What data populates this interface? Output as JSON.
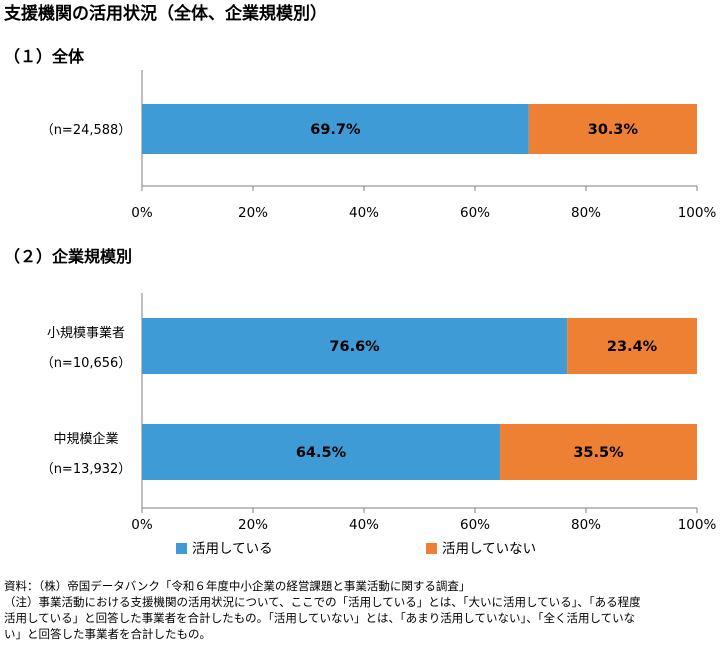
{
  "title": "支援機関の活用状況（全体、企業規模別）",
  "colors": {
    "used": "#3F9BD5",
    "not_used": "#EE8034"
  },
  "legend": {
    "used": "活用している",
    "not_used": "活用していない"
  },
  "chart_data": [
    {
      "type": "bar",
      "orientation": "horizontal",
      "stacked": true,
      "title": "（１）全体",
      "categories": [
        {
          "name": "",
          "n": "（n=24,588）"
        }
      ],
      "series": [
        {
          "name": "活用している",
          "values": [
            69.7
          ],
          "labels": [
            "69.7%"
          ]
        },
        {
          "name": "活用していない",
          "values": [
            30.3
          ],
          "labels": [
            "30.3%"
          ]
        }
      ],
      "xlim": [
        0,
        100
      ],
      "ticks": [
        "0%",
        "20%",
        "40%",
        "60%",
        "80%",
        "100%"
      ],
      "grid": false
    },
    {
      "type": "bar",
      "orientation": "horizontal",
      "stacked": true,
      "title": "（２）企業規模別",
      "categories": [
        {
          "name": "小規模事業者",
          "n": "（n=10,656）"
        },
        {
          "name": "中規模企業",
          "n": "（n=13,932）"
        }
      ],
      "series": [
        {
          "name": "活用している",
          "values": [
            76.6,
            64.5
          ],
          "labels": [
            "76.6%",
            "64.5%"
          ]
        },
        {
          "name": "活用していない",
          "values": [
            23.4,
            35.5
          ],
          "labels": [
            "23.4%",
            "35.5%"
          ]
        }
      ],
      "xlim": [
        0,
        100
      ],
      "ticks": [
        "0%",
        "20%",
        "40%",
        "60%",
        "80%",
        "100%"
      ],
      "grid": false,
      "legend_position": "bottom"
    }
  ],
  "notes": {
    "source": "資料：（株）帝国データバンク「令和６年度中小企業の経営課題と事業活動に関する調査」",
    "line1": "（注）事業活動における支援機関の活用状況について、ここでの「活用している」とは、「大いに活用している」、「ある程度",
    "line2": "活用している」と回答した事業者を合計したもの。「活用していない」とは、「あまり活用していない」、「全く活用していな",
    "line3": "い」と回答した事業者を合計したもの。"
  }
}
